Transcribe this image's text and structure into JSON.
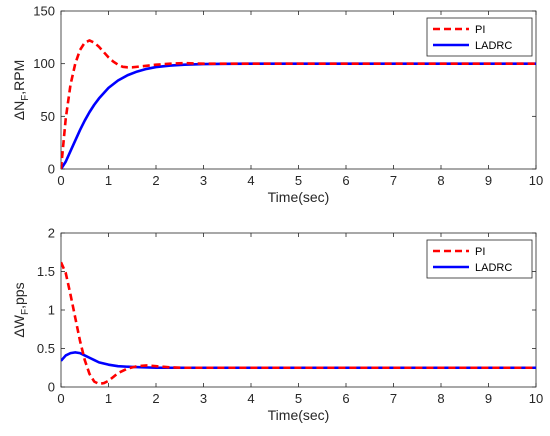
{
  "chart_data": [
    {
      "type": "line",
      "title": "",
      "xlabel": "Time(sec)",
      "ylabel": "ΔN",
      "ylabel_sub": "F",
      "ylabel_suffix": ",RPM",
      "xlim": [
        0,
        10
      ],
      "ylim": [
        0,
        150
      ],
      "xticks": [
        0,
        1,
        2,
        3,
        4,
        5,
        6,
        7,
        8,
        9,
        10
      ],
      "yticks": [
        0,
        50,
        100,
        150
      ],
      "grid": false,
      "legend_position": "top-right",
      "series": [
        {
          "name": "PI",
          "color": "#ff0000",
          "style": "dashed",
          "x": [
            0,
            0.1,
            0.2,
            0.3,
            0.4,
            0.5,
            0.6,
            0.7,
            0.8,
            0.9,
            1.0,
            1.1,
            1.2,
            1.3,
            1.4,
            1.5,
            1.7,
            2.0,
            2.3,
            2.6,
            3.0,
            4.0,
            5.0,
            6.0,
            7.0,
            8.0,
            9.0,
            10.0
          ],
          "y": [
            0,
            48,
            80,
            100,
            113,
            120,
            122,
            120,
            116,
            111,
            106,
            102,
            99,
            97,
            96.5,
            96.5,
            97.5,
            99,
            100,
            100.5,
            100,
            100,
            100,
            100,
            100,
            100,
            100,
            100
          ]
        },
        {
          "name": "LADRC",
          "color": "#0000ff",
          "style": "solid",
          "x": [
            0,
            0.1,
            0.2,
            0.3,
            0.4,
            0.5,
            0.6,
            0.7,
            0.8,
            0.9,
            1.0,
            1.2,
            1.4,
            1.6,
            1.8,
            2.0,
            2.3,
            2.6,
            3.0,
            3.5,
            4.0,
            5.0,
            6.0,
            7.0,
            8.0,
            9.0,
            10.0
          ],
          "y": [
            0,
            7,
            17,
            27,
            37,
            46,
            54,
            61,
            67,
            72,
            77,
            84,
            89,
            92.5,
            95,
            96.8,
            98.2,
            99,
            99.6,
            99.9,
            100,
            100,
            100,
            100,
            100,
            100,
            100
          ]
        }
      ]
    },
    {
      "type": "line",
      "title": "",
      "xlabel": "Time(sec)",
      "ylabel": "ΔW",
      "ylabel_sub": "F",
      "ylabel_suffix": ",pps",
      "xlim": [
        0,
        10
      ],
      "ylim": [
        0,
        2
      ],
      "xticks": [
        0,
        1,
        2,
        3,
        4,
        5,
        6,
        7,
        8,
        9,
        10
      ],
      "yticks": [
        0,
        0.5,
        1,
        1.5,
        2
      ],
      "grid": false,
      "legend_position": "top-right",
      "series": [
        {
          "name": "PI",
          "color": "#ff0000",
          "style": "dashed",
          "x": [
            0,
            0.1,
            0.2,
            0.3,
            0.4,
            0.5,
            0.6,
            0.7,
            0.8,
            0.9,
            1.0,
            1.1,
            1.2,
            1.4,
            1.6,
            1.8,
            2.0,
            2.3,
            2.6,
            3.0,
            4.0,
            5.0,
            6.0,
            7.0,
            8.0,
            9.0,
            10.0
          ],
          "y": [
            1.62,
            1.48,
            1.2,
            0.9,
            0.6,
            0.35,
            0.17,
            0.07,
            0.04,
            0.05,
            0.08,
            0.13,
            0.18,
            0.24,
            0.27,
            0.28,
            0.27,
            0.255,
            0.25,
            0.25,
            0.25,
            0.25,
            0.25,
            0.25,
            0.25,
            0.25,
            0.25
          ]
        },
        {
          "name": "LADRC",
          "color": "#0000ff",
          "style": "solid",
          "x": [
            0,
            0.1,
            0.2,
            0.3,
            0.4,
            0.5,
            0.6,
            0.7,
            0.8,
            1.0,
            1.2,
            1.5,
            2.0,
            2.5,
            3.0,
            4.0,
            5.0,
            6.0,
            7.0,
            8.0,
            9.0,
            10.0
          ],
          "y": [
            0.34,
            0.41,
            0.44,
            0.45,
            0.44,
            0.41,
            0.38,
            0.35,
            0.32,
            0.29,
            0.27,
            0.26,
            0.25,
            0.25,
            0.25,
            0.25,
            0.25,
            0.25,
            0.25,
            0.25,
            0.25,
            0.25
          ]
        }
      ]
    }
  ]
}
